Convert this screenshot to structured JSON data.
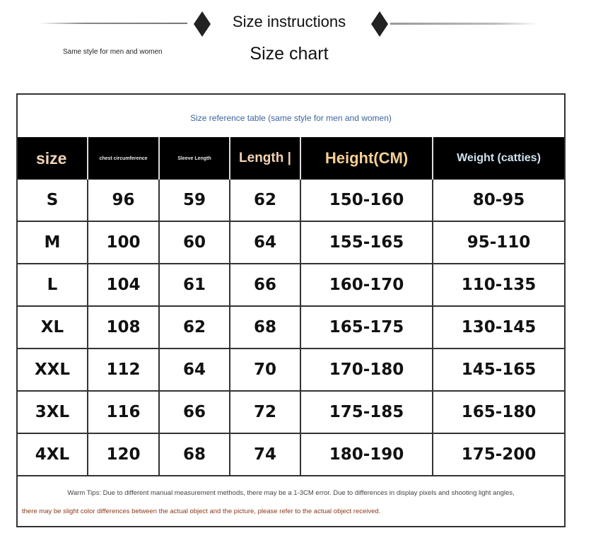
{
  "header": {
    "title": "Size instructions",
    "subtitle": "Size chart",
    "side_note": "Same style for men and women"
  },
  "table": {
    "caption": "Size reference table (same style for men and women)",
    "columns": [
      {
        "label": "size",
        "color": "#f3d3b5"
      },
      {
        "label": "chest circumference",
        "color": "#e8e8e8"
      },
      {
        "label": "Sleeve Length",
        "color": "#e8e8e8"
      },
      {
        "label": "Length |",
        "color": "#f3d3b5"
      },
      {
        "label": "Height(CM)",
        "color": "#f5cf95"
      },
      {
        "label": "Weight (catties)",
        "color": "#cfe3f0"
      }
    ],
    "rows": [
      [
        "S",
        "96",
        "59",
        "62",
        "150-160",
        "80-95"
      ],
      [
        "M",
        "100",
        "60",
        "64",
        "155-165",
        "95-110"
      ],
      [
        "L",
        "104",
        "61",
        "66",
        "160-170",
        "110-135"
      ],
      [
        "XL",
        "108",
        "62",
        "68",
        "165-175",
        "130-145"
      ],
      [
        "XXL",
        "112",
        "64",
        "70",
        "170-180",
        "145-165"
      ],
      [
        "3XL",
        "116",
        "66",
        "72",
        "175-185",
        "165-180"
      ],
      [
        "4XL",
        "120",
        "68",
        "74",
        "180-190",
        "175-200"
      ]
    ]
  },
  "footer": {
    "tip_line1": "Warm Tips: Due to different manual measurement methods, there may be a 1-3CM error. Due to differences in display pixels and shooting light angles,",
    "tip_line2": "there may be slight color differences between the actual object and the picture, please refer to the actual object received."
  }
}
